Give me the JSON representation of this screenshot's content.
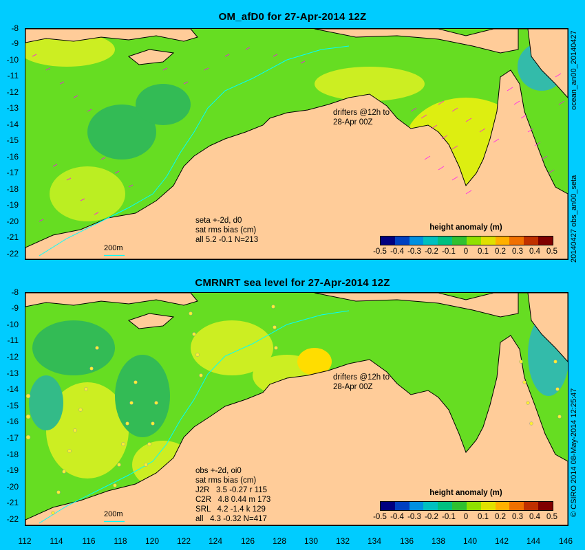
{
  "panels": [
    {
      "title": "OM_afD0 for 27-Apr-2014 12Z",
      "side_label": "ocean_an00_20140427",
      "side_label2": "20140427 obs_an00_seta",
      "annotation_lines": [
        "seta +-2d, d0",
        "sat rms bias (cm)",
        "all 5.2 -0.1 N=213"
      ],
      "drifters_text": [
        "drifters @12h to",
        "28-Apr 00Z"
      ],
      "scale_label": "200m",
      "legend_title": "height anomaly (m)"
    },
    {
      "title": "CMRNRT sea level  for 27-Apr-2014 12Z",
      "side_label": "© CSIRO 2014  08-May-2014 12:25:47",
      "annotation_lines": [
        "obs +-2d, oi0",
        "sat rms bias (cm)",
        "J2R   3.5 -0.27 r 115",
        "C2R   4.8 0.44 m 173",
        "SRL   4.2 -1.4 k 129",
        "all   4.3 -0.32 N=417"
      ],
      "drifters_text": [
        "drifters @12h to",
        "28-Apr 00Z"
      ],
      "scale_label": "200m",
      "legend_title": "height anomaly (m)"
    }
  ],
  "y_ticks": [
    "-8",
    "-9",
    "-10",
    "-11",
    "-12",
    "-13",
    "-14",
    "-15",
    "-16",
    "-17",
    "-18",
    "-19",
    "-20",
    "-21",
    "-22"
  ],
  "x_ticks": [
    "112",
    "114",
    "116",
    "118",
    "120",
    "122",
    "124",
    "126",
    "128",
    "130",
    "132",
    "134",
    "136",
    "138",
    "140",
    "142",
    "144",
    "146"
  ],
  "colorbar_ticks": [
    "-0.5",
    "-0.4",
    "-0.3",
    "-0.2",
    "-0.1",
    "0",
    "0.1",
    "0.2",
    "0.3",
    "0.4",
    "0.5"
  ],
  "colorbar_colors": [
    "#000080",
    "#0040c0",
    "#0090e0",
    "#00c0c0",
    "#00c080",
    "#30c030",
    "#90e000",
    "#e0e000",
    "#ffb000",
    "#f07000",
    "#c03000",
    "#800000"
  ],
  "colors": {
    "background": "#00ccff",
    "land": "#ffcc99",
    "ocean_base": "#66dd22",
    "vectors": "#ff00ff",
    "isobath": "#00ffff"
  }
}
